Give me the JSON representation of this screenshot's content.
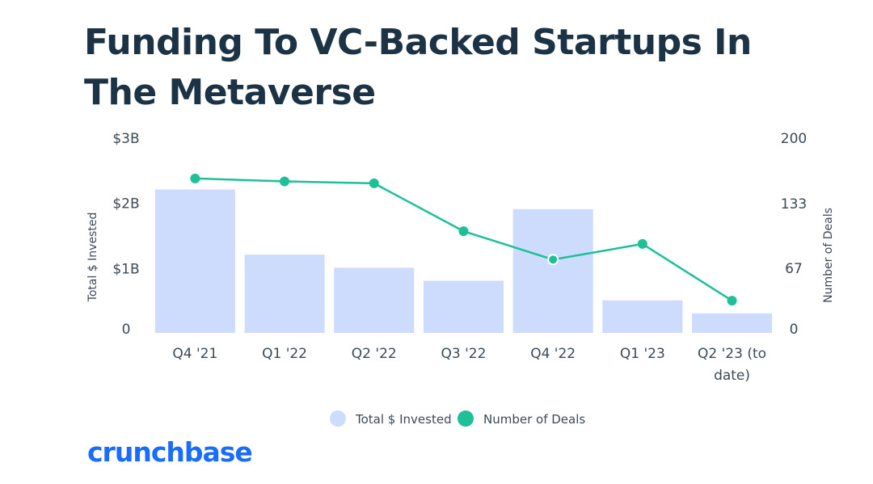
{
  "brand": {
    "name": "crunchbase",
    "color": "#1a6bff"
  },
  "colors": {
    "bar": "#cddcfc",
    "line": "#1fbf98",
    "text": "#1c3345",
    "tick": "#3b4a57"
  },
  "chart_data": {
    "type": "bar",
    "title": "Funding To VC-Backed Startups In The Metaverse",
    "categories": [
      [
        "Q4 '21"
      ],
      [
        "Q1 '22"
      ],
      [
        "Q2 '22"
      ],
      [
        "Q3 '22"
      ],
      [
        "Q4 '22"
      ],
      [
        "Q1 '23"
      ],
      [
        "Q2 '23 (to",
        "date)"
      ]
    ],
    "series": [
      {
        "name": "Total $ Invested",
        "type": "bar",
        "axis": "left",
        "values": [
          2.2,
          1.2,
          1.0,
          0.8,
          1.9,
          0.5,
          0.3
        ]
      },
      {
        "name": "Number of Deals",
        "type": "line",
        "axis": "right",
        "values": [
          158,
          155,
          153,
          104,
          75,
          91,
          33
        ]
      }
    ],
    "y_left": {
      "label": "Total $ Invested",
      "range": [
        0,
        3
      ],
      "ticks": [
        {
          "value": 0,
          "label": "0"
        },
        {
          "value": 1,
          "label": "$1B"
        },
        {
          "value": 2,
          "label": "$2B"
        },
        {
          "value": 3,
          "label": "$3B"
        }
      ]
    },
    "y_right": {
      "label": "Number of Deals",
      "range": [
        0,
        200
      ],
      "ticks": [
        {
          "value": 0,
          "label": "0"
        },
        {
          "value": 67,
          "label": "67"
        },
        {
          "value": 133,
          "label": "133"
        },
        {
          "value": 200,
          "label": "200"
        }
      ]
    },
    "legend": [
      "Total $ Invested",
      "Number of Deals"
    ],
    "legend_position": "bottom-center"
  }
}
